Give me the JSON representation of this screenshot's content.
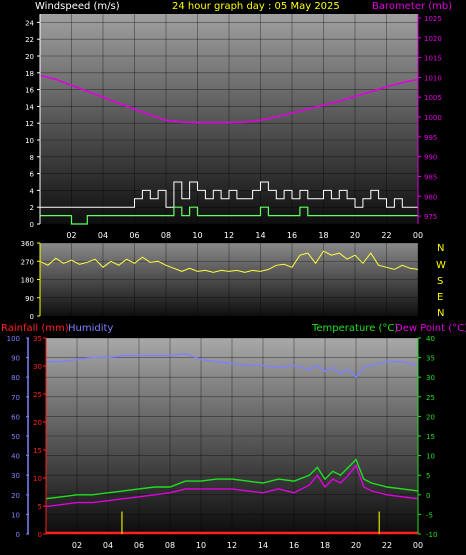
{
  "header": {
    "windspeed_label": "Windspeed (m/s)",
    "title": "24 hour graph day : 05 May 2025",
    "barometer_label": "Barometer (mb)"
  },
  "lower_header": {
    "rainfall_label": "Rainfall (mm)",
    "humidity_label": "Humidity",
    "temperature_label": "Temperature (°C)",
    "dewpoint_label": "Dew Point (°C)"
  },
  "compass": [
    "N",
    "W",
    "S",
    "E",
    "N"
  ],
  "colors": {
    "wind_gust": "#ffffff",
    "wind_avg": "#60ff60",
    "barometer": "#e000e0",
    "direction": "#ffff40",
    "humidity": "#8080ff",
    "temperature": "#20e020",
    "dewpoint": "#e000e0",
    "rain": "#ff2020",
    "rain_rate": "#c8c800",
    "title": "#ffff00"
  },
  "chart_data": [
    {
      "type": "line",
      "name": "wind-barometer",
      "x_ticks": [
        "02",
        "04",
        "06",
        "08",
        "10",
        "12",
        "14",
        "16",
        "18",
        "20",
        "22",
        "00"
      ],
      "xlim": [
        0,
        24
      ],
      "left_axis": {
        "label": "Windspeed (m/s)",
        "ylim": [
          0,
          25
        ],
        "ticks": [
          0,
          2,
          4,
          6,
          8,
          10,
          12,
          14,
          16,
          18,
          20,
          22,
          24
        ]
      },
      "right_axis": {
        "label": "Barometer (mb)",
        "ylim": [
          973,
          1026
        ],
        "ticks": [
          975,
          980,
          985,
          990,
          995,
          1000,
          1005,
          1010,
          1015,
          1020,
          1025
        ]
      },
      "series": [
        {
          "name": "Barometer (mb)",
          "axis": "right",
          "x": [
            0,
            1,
            2,
            3,
            4,
            5,
            6,
            7,
            8,
            9,
            10,
            11,
            12,
            13,
            14,
            15,
            16,
            17,
            18,
            19,
            20,
            21,
            22,
            23,
            24
          ],
          "y": [
            1010.5,
            1009.5,
            1008,
            1006.5,
            1005,
            1003.5,
            1002,
            1000.5,
            999.2,
            998.7,
            998.6,
            998.6,
            998.6,
            998.7,
            999.2,
            1000,
            1001,
            1002,
            1003,
            1004,
            1005.2,
            1006.4,
            1007.6,
            1008.7,
            1009.5
          ]
        },
        {
          "name": "Gust",
          "axis": "left",
          "x": [
            0,
            1,
            2,
            3,
            4,
            5,
            5.5,
            6,
            6.5,
            7,
            7.5,
            8,
            8.5,
            9,
            9.5,
            10,
            10.5,
            11,
            11.5,
            12,
            12.5,
            13,
            13.5,
            14,
            14.5,
            15,
            15.5,
            16,
            16.5,
            17,
            17.5,
            18,
            18.5,
            19,
            19.5,
            20,
            20.5,
            21,
            21.5,
            22,
            22.5,
            23,
            23.5,
            24
          ],
          "y": [
            2,
            2,
            2,
            2,
            2,
            2,
            2,
            3,
            4,
            3,
            4,
            2,
            5,
            3,
            5,
            4,
            3,
            4,
            3,
            4,
            3,
            3,
            4,
            5,
            4,
            3,
            4,
            3,
            4,
            3,
            3,
            4,
            3,
            4,
            3,
            2,
            3,
            4,
            3,
            2,
            3,
            2,
            2,
            3
          ]
        },
        {
          "name": "Average",
          "axis": "left",
          "x": [
            0,
            1,
            2,
            3,
            4,
            5,
            5.5,
            6,
            6.5,
            7,
            7.5,
            8,
            8.5,
            9,
            9.5,
            10,
            10.5,
            11,
            11.5,
            12,
            12.5,
            13,
            13.5,
            14,
            14.5,
            15,
            15.5,
            16,
            16.5,
            17,
            17.5,
            18,
            18.5,
            19,
            19.5,
            20,
            20.5,
            21,
            21.5,
            22,
            22.5,
            23,
            23.5,
            24
          ],
          "y": [
            1,
            1,
            0,
            1,
            1,
            1,
            1,
            1,
            1,
            1,
            1,
            1,
            2,
            1,
            2,
            1,
            1,
            1,
            1,
            1,
            1,
            1,
            1,
            2,
            1,
            1,
            1,
            1,
            2,
            1,
            1,
            1,
            1,
            1,
            1,
            1,
            1,
            1,
            1,
            1,
            1,
            1,
            1,
            1
          ]
        }
      ]
    },
    {
      "type": "line",
      "name": "wind-direction",
      "x_ticks": [
        "02",
        "04",
        "06",
        "08",
        "10",
        "12",
        "14",
        "16",
        "18",
        "20",
        "22",
        "00"
      ],
      "xlim": [
        0,
        24
      ],
      "left_axis": {
        "ylim": [
          0,
          360
        ],
        "ticks": [
          0,
          90,
          180,
          270,
          360
        ]
      },
      "series": [
        {
          "name": "Direction",
          "x": [
            0,
            0.5,
            1,
            1.5,
            2,
            2.5,
            3,
            3.5,
            4,
            4.5,
            5,
            5.5,
            6,
            6.5,
            7,
            7.5,
            8,
            8.5,
            9,
            9.5,
            10,
            10.5,
            11,
            11.5,
            12,
            12.5,
            13,
            13.5,
            14,
            14.5,
            15,
            15.5,
            16,
            16.5,
            17,
            17.5,
            18,
            18.5,
            19,
            19.5,
            20,
            20.5,
            21,
            21.5,
            22,
            22.5,
            23,
            23.5,
            24
          ],
          "y": [
            270,
            250,
            285,
            260,
            275,
            255,
            265,
            280,
            240,
            270,
            250,
            280,
            260,
            290,
            265,
            270,
            250,
            235,
            220,
            235,
            220,
            225,
            215,
            225,
            220,
            225,
            215,
            225,
            220,
            230,
            250,
            255,
            240,
            300,
            310,
            260,
            320,
            300,
            310,
            280,
            300,
            260,
            310,
            250,
            240,
            230,
            250,
            235,
            230
          ]
        }
      ]
    },
    {
      "type": "line",
      "name": "rain-humidity-temperature",
      "x_ticks": [
        "02",
        "04",
        "06",
        "08",
        "10",
        "12",
        "14",
        "16",
        "18",
        "20",
        "22",
        "00"
      ],
      "xlim": [
        0,
        24
      ],
      "left_axis_humidity": {
        "label": "Humidity",
        "ylim": [
          0,
          100
        ],
        "ticks": [
          0,
          10,
          20,
          30,
          40,
          50,
          60,
          70,
          80,
          90,
          100
        ]
      },
      "left_axis_rain": {
        "label": "Rainfall (mm)",
        "ylim": [
          0,
          35
        ],
        "ticks": [
          0,
          5,
          10,
          15,
          20,
          25,
          30,
          35
        ]
      },
      "right_axis": {
        "label": "Temperature (°C)",
        "ylim": [
          -10,
          40
        ],
        "ticks": [
          -10,
          -5,
          0,
          5,
          10,
          15,
          20,
          25,
          30,
          35,
          40
        ]
      },
      "series": [
        {
          "name": "Humidity",
          "axis": "humidity",
          "x": [
            0,
            1,
            2,
            3,
            4,
            5,
            6,
            7,
            8,
            9,
            10,
            11,
            12,
            13,
            14,
            15,
            16,
            17,
            17.5,
            18,
            18.5,
            19,
            19.5,
            20,
            20.5,
            21,
            22,
            23,
            24
          ],
          "y": [
            88,
            88,
            89,
            90,
            90,
            91,
            91,
            91,
            91,
            92,
            89,
            88,
            87,
            86,
            86,
            85,
            86,
            84,
            86,
            83,
            85,
            82,
            84,
            80,
            85,
            86,
            88,
            88,
            86
          ]
        },
        {
          "name": "Temperature (°C)",
          "axis": "right",
          "x": [
            0,
            1,
            2,
            3,
            4,
            5,
            6,
            7,
            8,
            9,
            10,
            11,
            12,
            13,
            14,
            15,
            16,
            17,
            17.5,
            18,
            18.5,
            19,
            19.5,
            20,
            20.5,
            21,
            22,
            23,
            24
          ],
          "y": [
            -1,
            -0.5,
            0,
            0,
            0.5,
            1,
            1.5,
            2,
            2,
            3.5,
            3.5,
            4,
            4,
            3.5,
            3,
            4,
            3.5,
            5,
            7,
            4,
            6,
            5,
            7,
            9,
            4,
            3,
            2,
            1.5,
            1
          ]
        },
        {
          "name": "Dew Point (°C)",
          "axis": "right",
          "x": [
            0,
            1,
            2,
            3,
            4,
            5,
            6,
            7,
            8,
            9,
            10,
            11,
            12,
            13,
            14,
            15,
            16,
            17,
            17.5,
            18,
            18.5,
            19,
            19.5,
            20,
            20.5,
            21,
            22,
            23,
            24
          ],
          "y": [
            -3,
            -2.5,
            -2,
            -2,
            -1.5,
            -1,
            -0.5,
            0,
            0.5,
            1.5,
            1.5,
            1.5,
            1.5,
            1,
            0.5,
            1.5,
            0.5,
            2.5,
            5,
            2,
            4,
            3,
            5,
            7.5,
            2,
            1,
            0,
            -0.5,
            -1
          ]
        },
        {
          "name": "Rainfall (mm)",
          "axis": "rain",
          "x": [
            0,
            24
          ],
          "y": [
            0,
            0
          ]
        },
        {
          "name": "Rain rate",
          "axis": "rain",
          "type": "bar",
          "x": [
            4.9,
            21.5
          ],
          "y": [
            4,
            4
          ]
        }
      ]
    }
  ]
}
